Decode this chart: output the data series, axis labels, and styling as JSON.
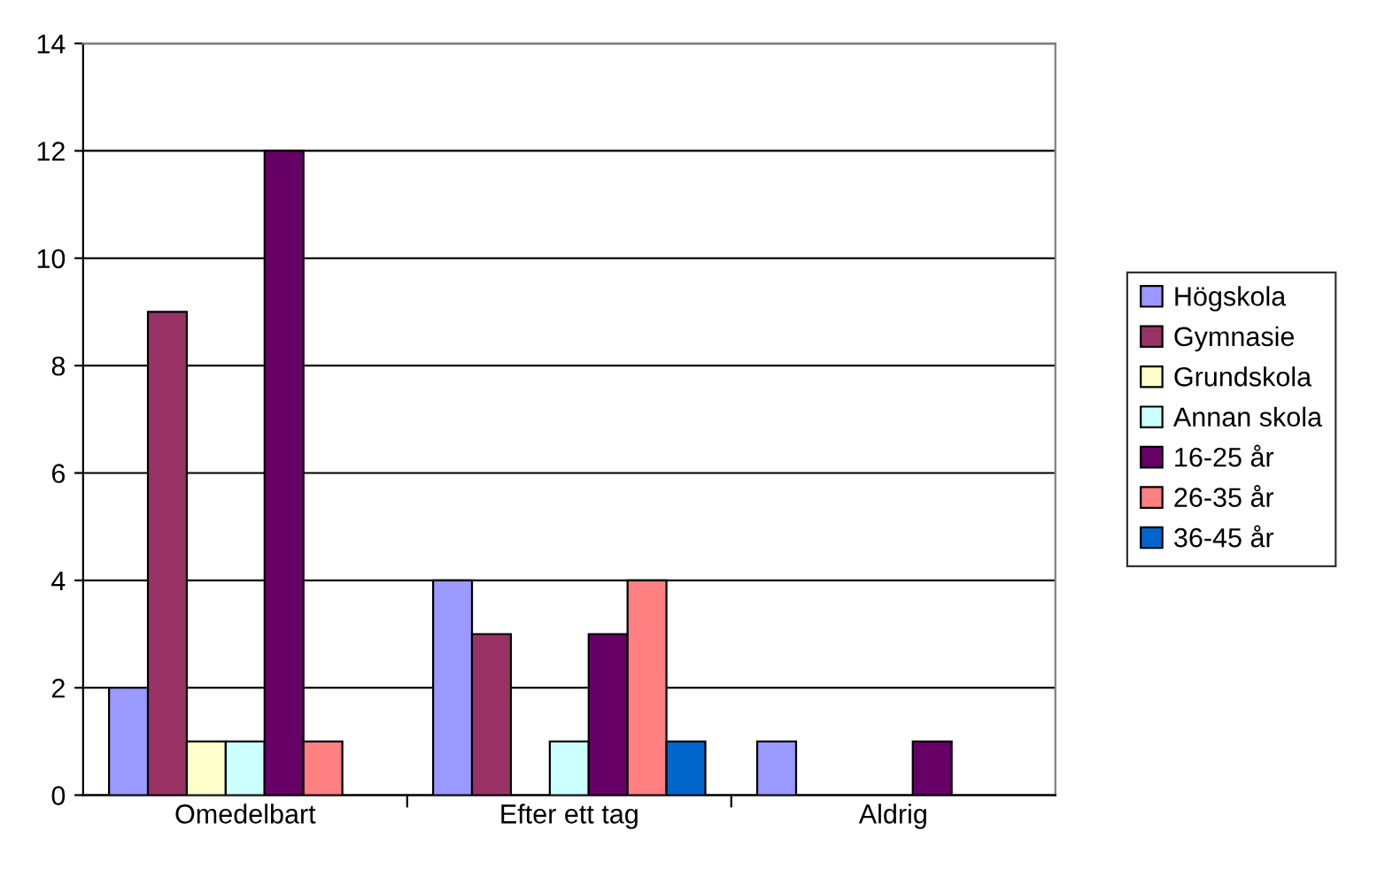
{
  "chart_data": {
    "type": "bar",
    "categories": [
      "Omedelbart",
      "Efter ett tag",
      "Aldrig"
    ],
    "series": [
      {
        "name": "Högskola",
        "color": "#9999ff",
        "values": [
          2,
          4,
          1
        ]
      },
      {
        "name": "Gymnasie",
        "color": "#993366",
        "values": [
          9,
          3,
          null
        ]
      },
      {
        "name": "Grundskola",
        "color": "#ffffcc",
        "values": [
          1,
          null,
          null
        ]
      },
      {
        "name": "Annan skola",
        "color": "#ccffff",
        "values": [
          1,
          1,
          null
        ]
      },
      {
        "name": "16-25 år",
        "color": "#660066",
        "values": [
          12,
          3,
          1
        ]
      },
      {
        "name": "26-35 år",
        "color": "#ff8080",
        "values": [
          1,
          4,
          null
        ]
      },
      {
        "name": "36-45 år",
        "color": "#0066cc",
        "values": [
          null,
          1,
          null
        ]
      }
    ],
    "ylim": [
      0,
      14
    ],
    "yticks": [
      0,
      2,
      4,
      6,
      8,
      10,
      12,
      14
    ],
    "grid": "y",
    "legend": "right"
  }
}
